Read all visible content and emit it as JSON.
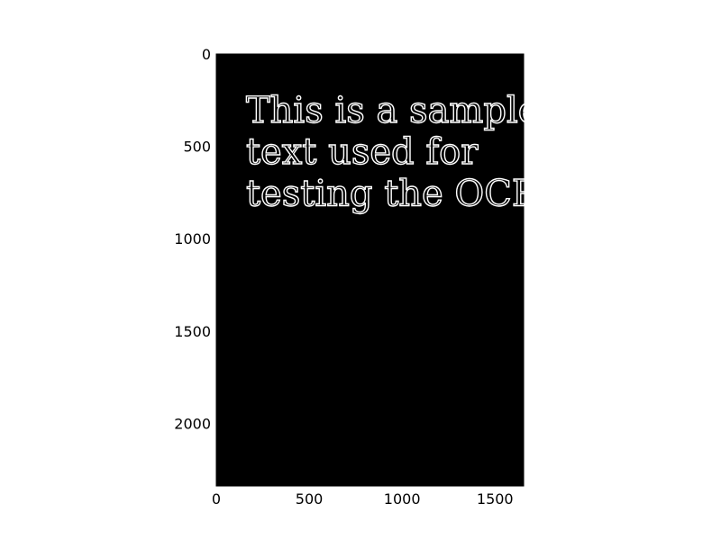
{
  "chart_data": {
    "type": "image",
    "title": "",
    "xlabel": "",
    "ylabel": "",
    "xlim": [
      0,
      1654
    ],
    "ylim": [
      2339,
      0
    ],
    "grid": false,
    "image": {
      "background": "#000000",
      "text_color": "#ffffff",
      "text_style": "outlined serif",
      "lines": [
        "This is a sample",
        "text used for",
        "testing the OCR"
      ],
      "line_baselines_y": [
        370,
        595,
        820
      ],
      "text_x": 160
    },
    "x_ticks": [
      0,
      500,
      1000,
      1500
    ],
    "x_tick_labels": [
      "0",
      "500",
      "1000",
      "1500"
    ],
    "y_ticks": [
      0,
      500,
      1000,
      1500,
      2000
    ],
    "y_tick_labels": [
      "0",
      "500",
      "1000",
      "1500",
      "2000"
    ]
  }
}
